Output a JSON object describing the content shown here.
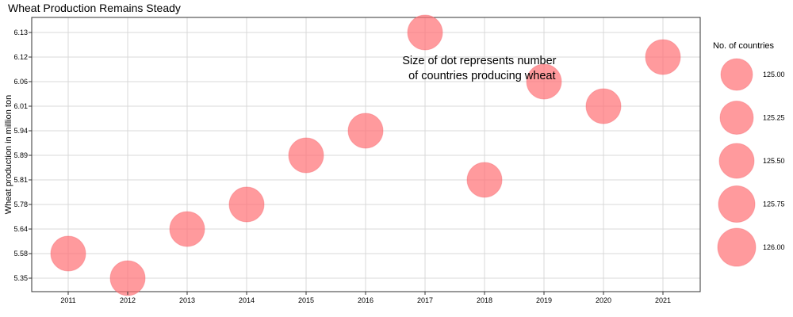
{
  "chart_data": {
    "type": "scatter",
    "title": "Wheat Production Remains Steady",
    "xlabel": "",
    "ylabel": "Wheat production in million ton",
    "x": [
      2011,
      2012,
      2013,
      2014,
      2015,
      2016,
      2017,
      2018,
      2019,
      2020,
      2021
    ],
    "y": [
      5.58,
      5.35,
      5.64,
      5.78,
      5.89,
      5.94,
      6.13,
      5.81,
      6.06,
      6.01,
      6.12
    ],
    "sizes": [
      125.5,
      125.5,
      125.5,
      125.5,
      125.5,
      125.5,
      125.5,
      125.5,
      125.5,
      125.5,
      125.5
    ],
    "x_ticks": [
      "2011",
      "2012",
      "2013",
      "2014",
      "2015",
      "2016",
      "2017",
      "2018",
      "2019",
      "2020",
      "2021"
    ],
    "y_ticks": [
      "5.35",
      "5.58",
      "5.64",
      "5.78",
      "5.81",
      "5.89",
      "5.94",
      "6.01",
      "6.06",
      "6.12",
      "6.13"
    ],
    "annotation": {
      "line1": "Size of dot represents number",
      "line2": "of countries producing wheat",
      "anchor_x": 2018.9,
      "anchor_y_index": 8.45
    },
    "legend": {
      "title": "No. of countries",
      "items": [
        "125.00",
        "125.25",
        "125.50",
        "125.75",
        "126.00"
      ],
      "placement": "right"
    },
    "grid": true,
    "colors": {
      "point_fill": "#ff6f73",
      "point_opacity": 0.7,
      "grid": "#d9d9d9",
      "panel_border": "#333333"
    }
  }
}
